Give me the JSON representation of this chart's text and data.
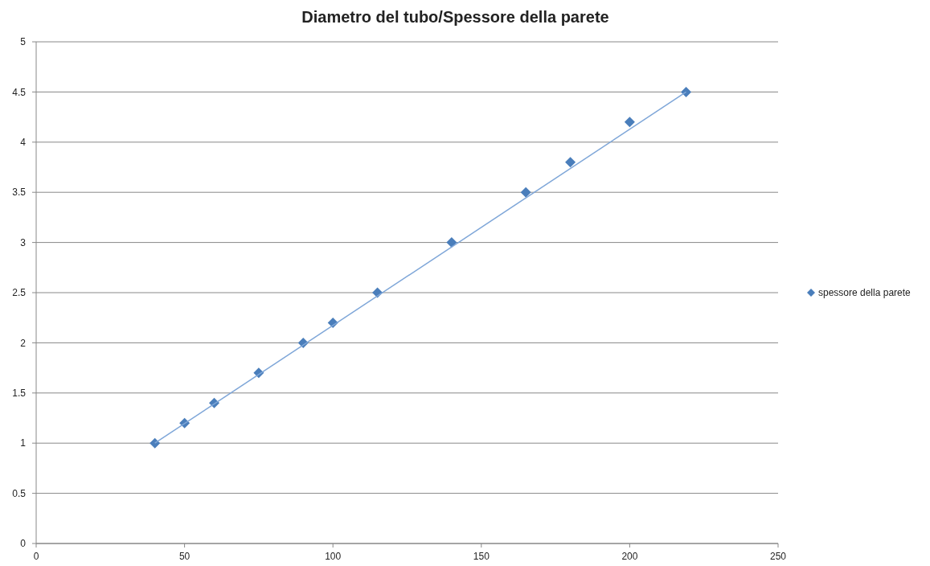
{
  "chart_data": {
    "type": "scatter",
    "title": "Diametro del tubo/Spessore della parete",
    "x": [
      40,
      50,
      60,
      75,
      90,
      100,
      115,
      140,
      165,
      180,
      200,
      219
    ],
    "series": [
      {
        "name": "spessore della parete",
        "marker": "diamond",
        "color": "#4a7ebb",
        "values": [
          1,
          1.2,
          1.4,
          1.7,
          2,
          2.2,
          2.5,
          3,
          3.5,
          3.8,
          4.2,
          4.5
        ]
      },
      {
        "type": "line",
        "marker": "none",
        "color": "#7ea6d8",
        "x": [
          40,
          219
        ],
        "values": [
          1,
          4.5
        ]
      }
    ],
    "xlim": [
      0,
      250
    ],
    "xticks": [
      0,
      50,
      100,
      150,
      200,
      250
    ],
    "ylim": [
      0,
      5
    ],
    "yticks": [
      0,
      0.5,
      1,
      1.5,
      2,
      2.5,
      3,
      3.5,
      4,
      4.5,
      5
    ],
    "grid": "y",
    "legend": "right"
  }
}
